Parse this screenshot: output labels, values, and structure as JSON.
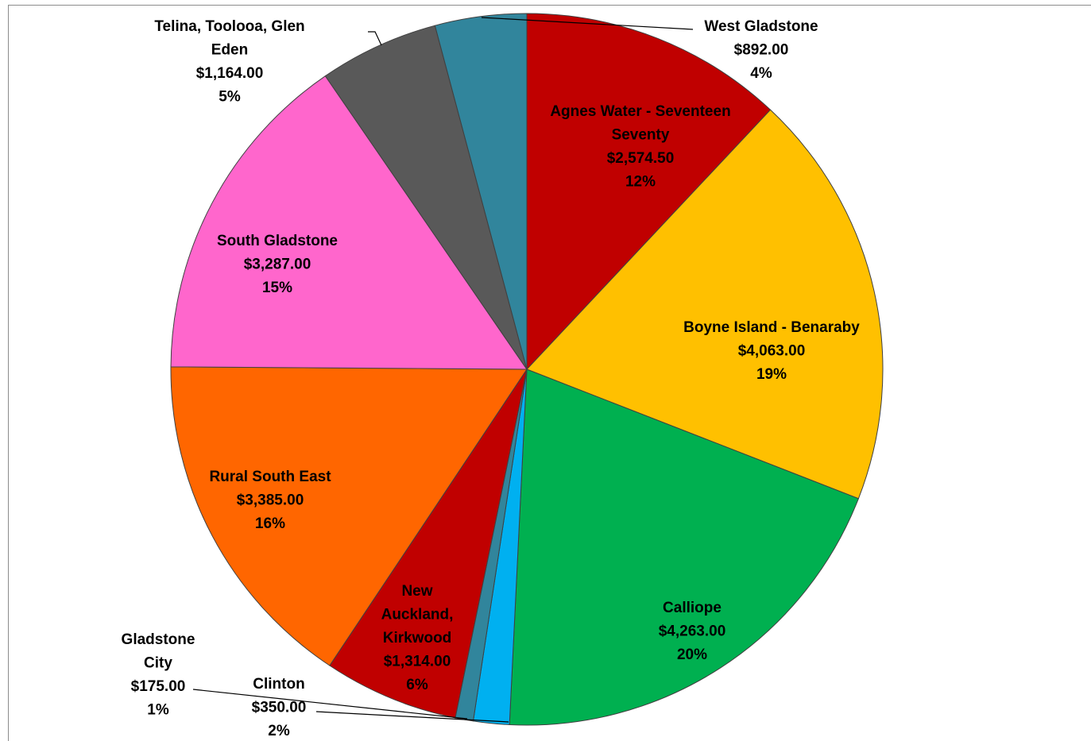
{
  "chart_data": {
    "type": "pie",
    "title": "",
    "start_angle_deg": 0,
    "direction": "clockwise",
    "slices": [
      {
        "lines": [
          "Agnes Water - Seventeen",
          "Seventy"
        ],
        "value": "$2,574.50",
        "percent": "12%",
        "amount": 2574.5,
        "color": "#C00000"
      },
      {
        "lines": [
          "Boyne Island - Benaraby"
        ],
        "value": "$4,063.00",
        "percent": "19%",
        "amount": 4063.0,
        "color": "#FFC000"
      },
      {
        "lines": [
          "Calliope"
        ],
        "value": "$4,263.00",
        "percent": "20%",
        "amount": 4263.0,
        "color": "#00B050"
      },
      {
        "lines": [
          "Clinton"
        ],
        "value": "$350.00",
        "percent": "2%",
        "amount": 350.0,
        "color": "#00B0F0"
      },
      {
        "lines": [
          "Gladstone",
          "City"
        ],
        "value": "$175.00",
        "percent": "1%",
        "amount": 175.0,
        "color": "#31859C"
      },
      {
        "lines": [
          "New",
          "Auckland,",
          "Kirkwood"
        ],
        "value": "$1,314.00",
        "percent": "6%",
        "amount": 1314.0,
        "color": "#C00000"
      },
      {
        "lines": [
          "Rural South East"
        ],
        "value": "$3,385.00",
        "percent": "16%",
        "amount": 3385.0,
        "color": "#FF6600"
      },
      {
        "lines": [
          "South Gladstone"
        ],
        "value": "$3,287.00",
        "percent": "15%",
        "amount": 3287.0,
        "color": "#FF66CC"
      },
      {
        "lines": [
          "Telina, Toolooa, Glen",
          "Eden"
        ],
        "value": "$1,164.00",
        "percent": "5%",
        "amount": 1164.0,
        "color": "#595959"
      },
      {
        "lines": [
          "West Gladstone"
        ],
        "value": "$892.00",
        "percent": "4%",
        "amount": 892.0,
        "color": "#31859C"
      }
    ]
  }
}
